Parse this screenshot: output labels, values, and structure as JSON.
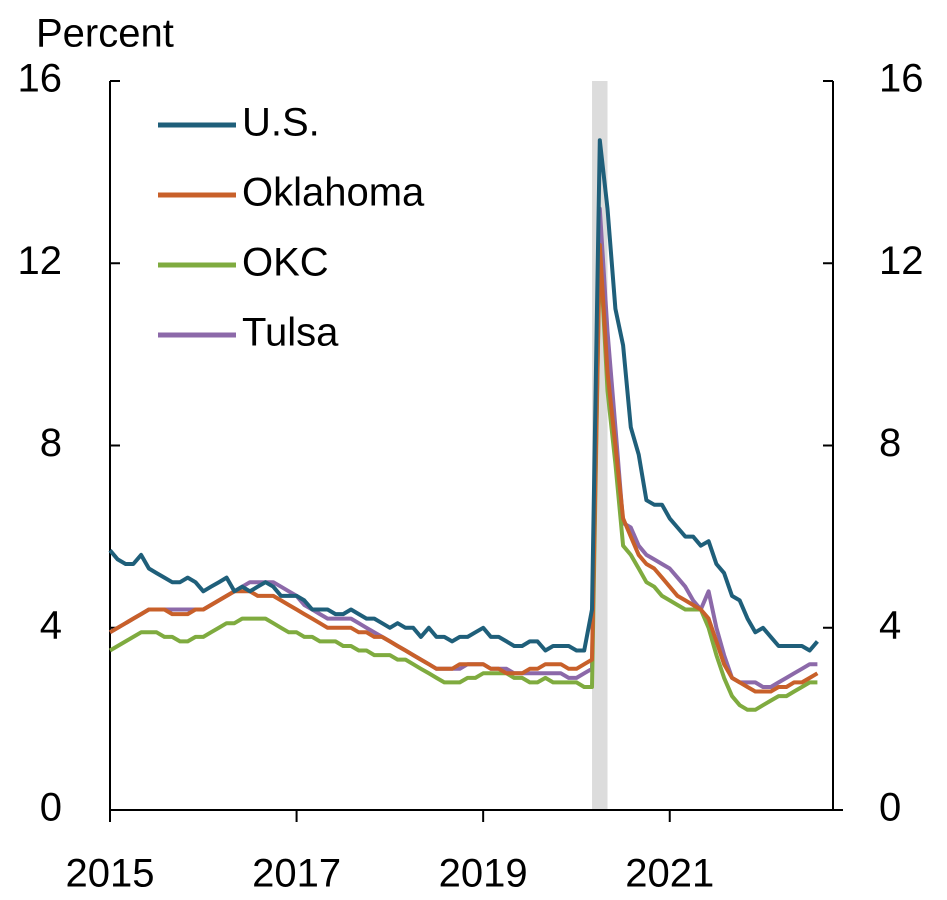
{
  "chart_data": {
    "type": "line",
    "ylabel": "Percent",
    "x": [
      2015,
      2015.083,
      2015.167,
      2015.25,
      2015.333,
      2015.417,
      2015.5,
      2015.583,
      2015.667,
      2015.75,
      2015.833,
      2015.917,
      2016,
      2016.083,
      2016.167,
      2016.25,
      2016.333,
      2016.417,
      2016.5,
      2016.583,
      2016.667,
      2016.75,
      2016.833,
      2016.917,
      2017,
      2017.083,
      2017.167,
      2017.25,
      2017.333,
      2017.417,
      2017.5,
      2017.583,
      2017.667,
      2017.75,
      2017.833,
      2017.917,
      2018,
      2018.083,
      2018.167,
      2018.25,
      2018.333,
      2018.417,
      2018.5,
      2018.583,
      2018.667,
      2018.75,
      2018.833,
      2018.917,
      2019,
      2019.083,
      2019.167,
      2019.25,
      2019.333,
      2019.417,
      2019.5,
      2019.583,
      2019.667,
      2019.75,
      2019.833,
      2019.917,
      2020,
      2020.083,
      2020.167,
      2020.25,
      2020.333,
      2020.417,
      2020.5,
      2020.583,
      2020.667,
      2020.75,
      2020.833,
      2020.917,
      2021,
      2021.083,
      2021.167,
      2021.25,
      2021.333,
      2021.417,
      2021.5,
      2021.583,
      2021.667,
      2021.75,
      2021.833,
      2021.917,
      2022,
      2022.083,
      2022.167,
      2022.25,
      2022.333,
      2022.417,
      2022.5,
      2022.583
    ],
    "series": [
      {
        "name": "U.S.",
        "color": "#1f5f7a",
        "values": [
          5.7,
          5.5,
          5.4,
          5.4,
          5.6,
          5.3,
          5.2,
          5.1,
          5.0,
          5.0,
          5.1,
          5.0,
          4.8,
          4.9,
          5.0,
          5.1,
          4.8,
          4.9,
          4.8,
          4.9,
          5.0,
          4.9,
          4.7,
          4.7,
          4.7,
          4.6,
          4.4,
          4.4,
          4.4,
          4.3,
          4.3,
          4.4,
          4.3,
          4.2,
          4.2,
          4.1,
          4.0,
          4.1,
          4.0,
          4.0,
          3.8,
          4.0,
          3.8,
          3.8,
          3.7,
          3.8,
          3.8,
          3.9,
          4.0,
          3.8,
          3.8,
          3.7,
          3.6,
          3.6,
          3.7,
          3.7,
          3.5,
          3.6,
          3.6,
          3.6,
          3.5,
          3.5,
          4.4,
          14.7,
          13.2,
          11.0,
          10.2,
          8.4,
          7.8,
          6.8,
          6.7,
          6.7,
          6.4,
          6.2,
          6.0,
          6.0,
          5.8,
          5.9,
          5.4,
          5.2,
          4.7,
          4.6,
          4.2,
          3.9,
          4.0,
          3.8,
          3.6,
          3.6,
          3.6,
          3.6,
          3.5,
          3.7
        ]
      },
      {
        "name": "Oklahoma",
        "color": "#c8602a",
        "values": [
          3.9,
          4.0,
          4.1,
          4.2,
          4.3,
          4.4,
          4.4,
          4.4,
          4.3,
          4.3,
          4.3,
          4.4,
          4.4,
          4.5,
          4.6,
          4.7,
          4.8,
          4.8,
          4.8,
          4.7,
          4.7,
          4.7,
          4.6,
          4.5,
          4.4,
          4.3,
          4.2,
          4.1,
          4.0,
          4.0,
          4.0,
          4.0,
          3.9,
          3.9,
          3.8,
          3.8,
          3.7,
          3.6,
          3.5,
          3.4,
          3.3,
          3.2,
          3.1,
          3.1,
          3.1,
          3.2,
          3.2,
          3.2,
          3.2,
          3.1,
          3.1,
          3.0,
          3.0,
          3.0,
          3.1,
          3.1,
          3.2,
          3.2,
          3.2,
          3.1,
          3.1,
          3.2,
          3.3,
          12.4,
          9.6,
          8.0,
          6.4,
          6.0,
          5.6,
          5.4,
          5.3,
          5.1,
          4.9,
          4.7,
          4.6,
          4.5,
          4.4,
          4.2,
          3.7,
          3.2,
          2.9,
          2.8,
          2.7,
          2.6,
          2.6,
          2.6,
          2.7,
          2.7,
          2.8,
          2.8,
          2.9,
          3.0
        ]
      },
      {
        "name": "OKC",
        "color": "#7fab3f",
        "values": [
          3.5,
          3.6,
          3.7,
          3.8,
          3.9,
          3.9,
          3.9,
          3.8,
          3.8,
          3.7,
          3.7,
          3.8,
          3.8,
          3.9,
          4.0,
          4.1,
          4.1,
          4.2,
          4.2,
          4.2,
          4.2,
          4.1,
          4.0,
          3.9,
          3.9,
          3.8,
          3.8,
          3.7,
          3.7,
          3.7,
          3.6,
          3.6,
          3.5,
          3.5,
          3.4,
          3.4,
          3.4,
          3.3,
          3.3,
          3.2,
          3.1,
          3.0,
          2.9,
          2.8,
          2.8,
          2.8,
          2.9,
          2.9,
          3.0,
          3.0,
          3.0,
          3.0,
          2.9,
          2.9,
          2.8,
          2.8,
          2.9,
          2.8,
          2.8,
          2.8,
          2.8,
          2.7,
          2.7,
          12.4,
          9.2,
          7.6,
          5.8,
          5.6,
          5.3,
          5.0,
          4.9,
          4.7,
          4.6,
          4.5,
          4.4,
          4.4,
          4.4,
          4.0,
          3.4,
          2.9,
          2.5,
          2.3,
          2.2,
          2.2,
          2.3,
          2.4,
          2.5,
          2.5,
          2.6,
          2.7,
          2.8,
          2.8
        ]
      },
      {
        "name": "Tulsa",
        "color": "#8c69a9",
        "values": [
          3.9,
          4.0,
          4.1,
          4.2,
          4.3,
          4.4,
          4.4,
          4.4,
          4.4,
          4.4,
          4.4,
          4.4,
          4.4,
          4.5,
          4.6,
          4.7,
          4.8,
          4.9,
          5.0,
          5.0,
          5.0,
          5.0,
          4.9,
          4.8,
          4.7,
          4.5,
          4.4,
          4.3,
          4.2,
          4.2,
          4.2,
          4.2,
          4.1,
          4.0,
          3.9,
          3.8,
          3.7,
          3.6,
          3.5,
          3.4,
          3.3,
          3.2,
          3.1,
          3.1,
          3.1,
          3.1,
          3.2,
          3.2,
          3.2,
          3.1,
          3.1,
          3.1,
          3.0,
          3.0,
          3.0,
          3.0,
          3.0,
          3.0,
          3.0,
          2.9,
          2.9,
          3.0,
          3.1,
          13.2,
          10.5,
          8.4,
          6.3,
          6.2,
          5.8,
          5.6,
          5.5,
          5.4,
          5.3,
          5.1,
          4.9,
          4.6,
          4.4,
          4.8,
          4.0,
          3.4,
          2.9,
          2.8,
          2.8,
          2.8,
          2.7,
          2.7,
          2.8,
          2.9,
          3.0,
          3.1,
          3.2,
          3.2
        ]
      }
    ],
    "recession": [
      2020.167,
      2020.333
    ],
    "xlim": [
      2015,
      2022.75
    ],
    "xticks": [
      2015,
      2017,
      2019,
      2021
    ],
    "ylim": [
      0,
      16
    ],
    "yticks": [
      0,
      4,
      8,
      12,
      16
    ],
    "y2lim": [
      0,
      16
    ],
    "y2ticks": [
      0,
      4,
      8,
      12,
      16
    ],
    "legend": "upper-left"
  }
}
